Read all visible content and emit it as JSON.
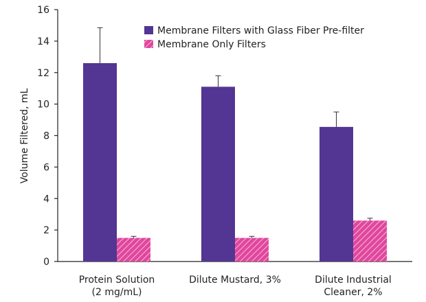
{
  "chart_data": {
    "type": "bar",
    "ylabel": "Volume Filtered, mL",
    "ylim": [
      0,
      16
    ],
    "yticks": [
      0,
      2,
      4,
      6,
      8,
      10,
      12,
      14,
      16
    ],
    "categories": [
      [
        "Protein Solution",
        "(2 mg/mL)"
      ],
      [
        "Dilute Mustard, 3%"
      ],
      [
        "Dilute Industrial",
        "Cleaner, 2%"
      ]
    ],
    "series": [
      {
        "name": "Membrane Filters with Glass Fiber Pre-filter",
        "values": [
          12.6,
          11.1,
          8.55
        ],
        "error": [
          2.25,
          0.7,
          0.95
        ],
        "color": "#533593",
        "pattern": "solid"
      },
      {
        "name": "Membrane Only Filters",
        "values": [
          1.5,
          1.5,
          2.6
        ],
        "error": [
          0.1,
          0.1,
          0.15
        ],
        "color": "#e0479d",
        "pattern": "hatched"
      }
    ],
    "grid": false,
    "legend_position": "top-right"
  }
}
